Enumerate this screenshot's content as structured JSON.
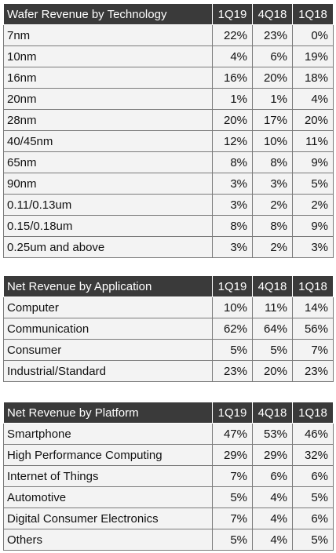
{
  "tables": {
    "technology": {
      "title": "Wafer Revenue by Technology",
      "columns": [
        "1Q19",
        "4Q18",
        "1Q18"
      ],
      "rows": [
        {
          "label": "7nm",
          "values": [
            "22%",
            "23%",
            "0%"
          ]
        },
        {
          "label": "10nm",
          "values": [
            "4%",
            "6%",
            "19%"
          ]
        },
        {
          "label": "16nm",
          "values": [
            "16%",
            "20%",
            "18%"
          ]
        },
        {
          "label": "20nm",
          "values": [
            "1%",
            "1%",
            "4%"
          ]
        },
        {
          "label": "28nm",
          "values": [
            "20%",
            "17%",
            "20%"
          ]
        },
        {
          "label": "40/45nm",
          "values": [
            "12%",
            "10%",
            "11%"
          ]
        },
        {
          "label": "65nm",
          "values": [
            "8%",
            "8%",
            "9%"
          ]
        },
        {
          "label": "90nm",
          "values": [
            "3%",
            "3%",
            "5%"
          ]
        },
        {
          "label": "0.11/0.13um",
          "values": [
            "3%",
            "2%",
            "2%"
          ]
        },
        {
          "label": "0.15/0.18um",
          "values": [
            "8%",
            "8%",
            "9%"
          ]
        },
        {
          "label": "0.25um and above",
          "values": [
            "3%",
            "2%",
            "3%"
          ]
        }
      ]
    },
    "application": {
      "title": "Net Revenue by Application",
      "columns": [
        "1Q19",
        "4Q18",
        "1Q18"
      ],
      "rows": [
        {
          "label": "Computer",
          "values": [
            "10%",
            "11%",
            "14%"
          ]
        },
        {
          "label": "Communication",
          "values": [
            "62%",
            "64%",
            "56%"
          ]
        },
        {
          "label": "Consumer",
          "values": [
            "5%",
            "5%",
            "7%"
          ]
        },
        {
          "label": "Industrial/Standard",
          "values": [
            "23%",
            "20%",
            "23%"
          ]
        }
      ]
    },
    "platform": {
      "title": "Net Revenue by Platform",
      "columns": [
        "1Q19",
        "4Q18",
        "1Q18"
      ],
      "rows": [
        {
          "label": "Smartphone",
          "values": [
            "47%",
            "53%",
            "46%"
          ]
        },
        {
          "label": "High Performance Computing",
          "values": [
            "29%",
            "29%",
            "32%"
          ]
        },
        {
          "label": "Internet of Things",
          "values": [
            "7%",
            "6%",
            "6%"
          ]
        },
        {
          "label": "Automotive",
          "values": [
            "5%",
            "4%",
            "5%"
          ]
        },
        {
          "label": "Digital Consumer Electronics",
          "values": [
            "7%",
            "4%",
            "6%"
          ]
        },
        {
          "label": "Others",
          "values": [
            "5%",
            "4%",
            "5%"
          ]
        }
      ]
    }
  },
  "colors": {
    "header_bg": "#3a3a3a",
    "header_text": "#ffffff",
    "cell_bg": "#f3f3f3",
    "border": "#7a7a7a"
  }
}
